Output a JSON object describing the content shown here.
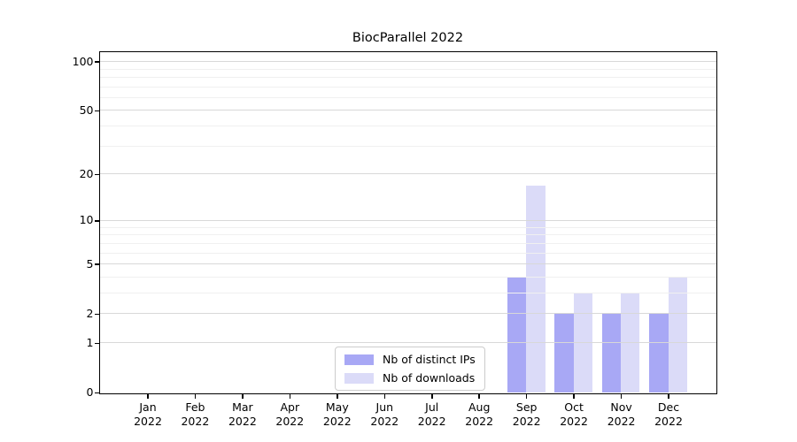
{
  "chart_data": {
    "type": "bar",
    "title": "BiocParallel 2022",
    "categories": [
      "Jan 2022",
      "Feb 2022",
      "Mar 2022",
      "Apr 2022",
      "May 2022",
      "Jun 2022",
      "Jul 2022",
      "Aug 2022",
      "Sep 2022",
      "Oct 2022",
      "Nov 2022",
      "Dec 2022"
    ],
    "series": [
      {
        "name": "Nb of distinct IPs",
        "color": "#a8a8f5",
        "values": [
          0,
          0,
          0,
          0,
          0,
          0,
          0,
          0,
          4,
          2,
          2,
          2
        ]
      },
      {
        "name": "Nb of downloads",
        "color": "#dbdbf8",
        "values": [
          0,
          0,
          0,
          0,
          0,
          0,
          0,
          0,
          17,
          3,
          3,
          4
        ]
      }
    ],
    "xlabel": "",
    "ylabel": "",
    "scale": "log1p",
    "ylim": [
      0,
      113
    ],
    "yticks": [
      0,
      1,
      2,
      5,
      10,
      20,
      50,
      100
    ],
    "minor_gridlines": [
      3,
      4,
      6,
      7,
      8,
      9,
      30,
      40,
      60,
      70,
      80,
      90
    ],
    "grid": true,
    "legend_position": "bottom-center"
  },
  "colors": {
    "background": "#ffffff",
    "axis": "#000000",
    "grid_major": "#d8d8d8",
    "grid_minor": "#f0f0f0",
    "legend_border": "#cccccc",
    "text": "#000000"
  }
}
